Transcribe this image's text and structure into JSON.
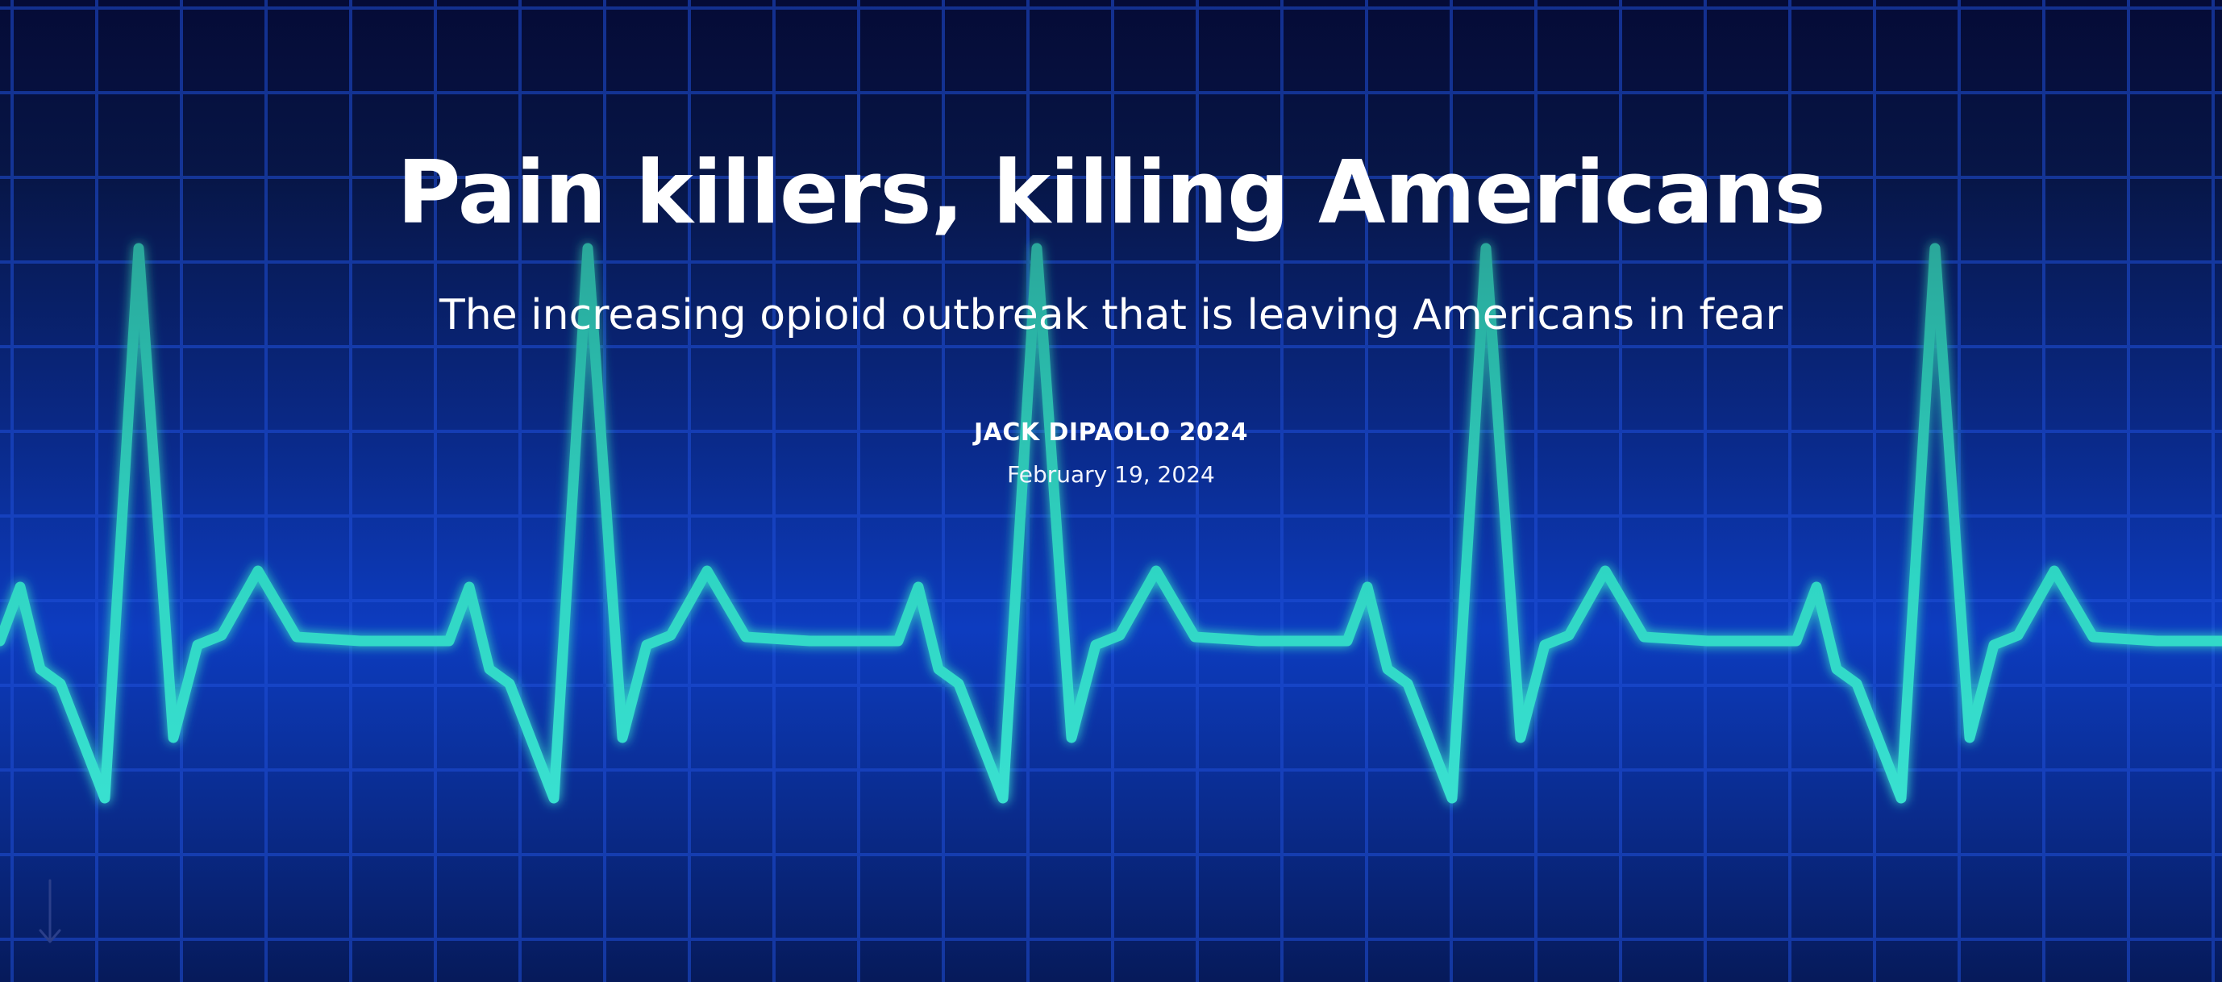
{
  "hero": {
    "title": "Pain killers, killing Americans",
    "subtitle": "The increasing opioid outbreak that is leaving Americans in fear",
    "author": "JACK DIPAOLO 2024",
    "date": "February 19, 2024"
  },
  "scroll_indicator": {
    "icon": "arrow-down-icon"
  },
  "colors": {
    "background_dark": "#050b36",
    "background_mid": "#0d3cc0",
    "grid_line": "#1f4fd8",
    "ecg_line": "#2fd6c4",
    "text": "#ffffff"
  }
}
